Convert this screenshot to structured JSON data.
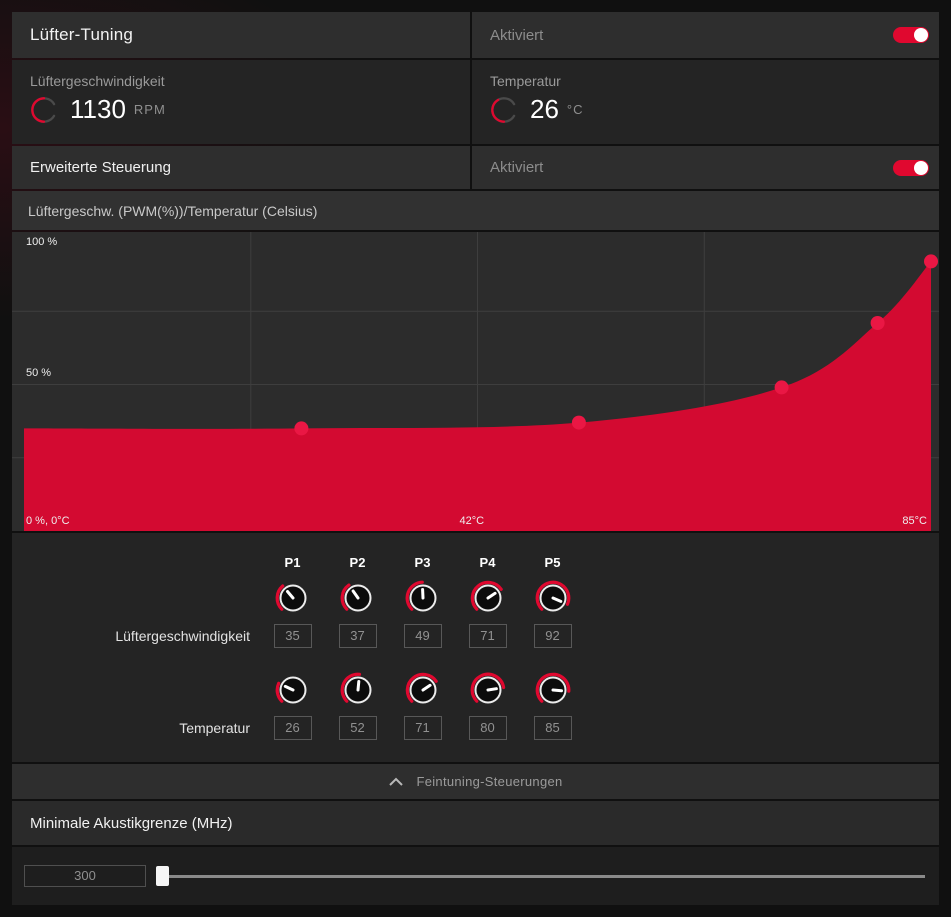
{
  "colors": {
    "accent": "#e0082f",
    "chart_fill": "#d30a31",
    "chart_point": "#ea1744",
    "chart_grid": "#3e3e3e"
  },
  "header": {
    "title": "Lüfter-Tuning",
    "status_label": "Aktiviert",
    "enabled": true
  },
  "gauges": {
    "fan": {
      "label": "Lüftergeschwindigkeit",
      "value": "1130",
      "unit": "RPM"
    },
    "temperature": {
      "label": "Temperatur",
      "value": "26",
      "unit": "°C"
    }
  },
  "advanced": {
    "label": "Erweiterte Steuerung",
    "status_label": "Aktiviert",
    "enabled": true
  },
  "chart_data": {
    "type": "area",
    "title": "Lüftergeschw. (PWM(%))/Temperatur (Celsius)",
    "x": [
      26,
      52,
      71,
      80,
      85
    ],
    "y": [
      35,
      37,
      49,
      71,
      92
    ],
    "xlim": [
      0,
      85
    ],
    "ylim": [
      0,
      100
    ],
    "grid": true,
    "labels": {
      "top_left": "100 %",
      "mid_left": "50 %",
      "bottom_left": "0 %, 0°C",
      "bottom_center": "42°C",
      "bottom_right": "85°C"
    }
  },
  "points_table": {
    "columns": [
      "P1",
      "P2",
      "P3",
      "P4",
      "P5"
    ],
    "rows": [
      {
        "label": "Lüftergeschwindigkeit",
        "values": [
          35,
          37,
          49,
          71,
          92
        ]
      },
      {
        "label": "Temperatur",
        "values": [
          26,
          52,
          71,
          80,
          85
        ]
      }
    ]
  },
  "finetuning": {
    "label": "Feintuning-Steuerungen"
  },
  "acoustic": {
    "title": "Minimale Akustikgrenze (MHz)",
    "value": "300"
  }
}
